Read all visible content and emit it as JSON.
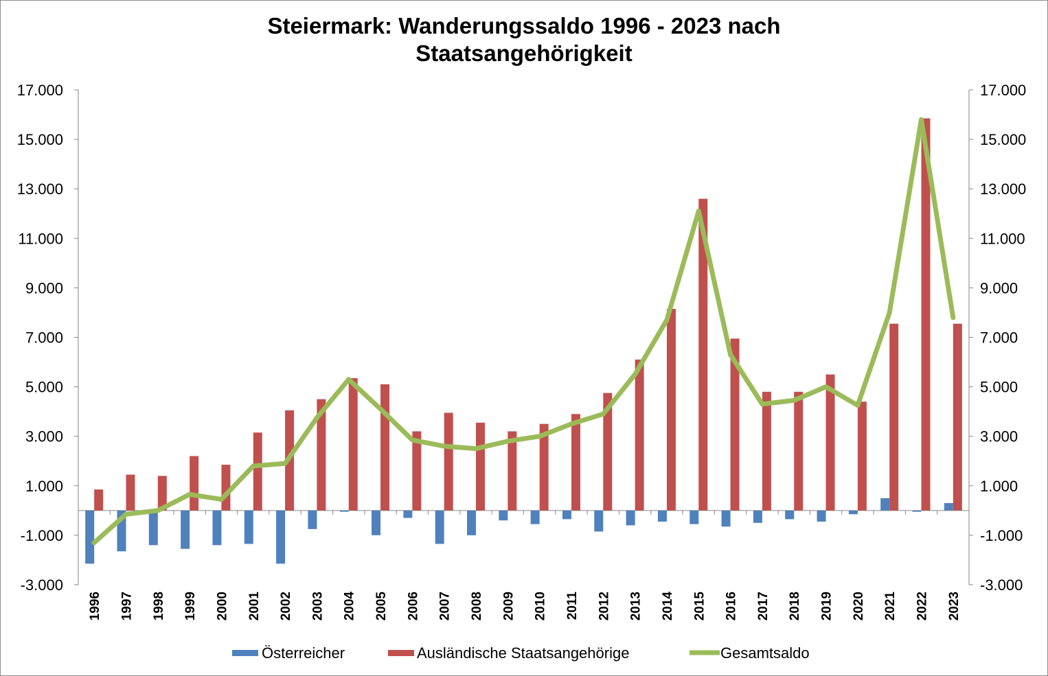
{
  "chart_data": {
    "type": "bar+line",
    "title_lines": [
      "Steiermark: Wanderungssaldo 1996 - 2023 nach",
      "Staatsangehörigkeit"
    ],
    "categories": [
      "1996",
      "1997",
      "1998",
      "1999",
      "2000",
      "2001",
      "2002",
      "2003",
      "2004",
      "2005",
      "2006",
      "2007",
      "2008",
      "2009",
      "2010",
      "2011",
      "2012",
      "2013",
      "2014",
      "2015",
      "2016",
      "2017",
      "2018",
      "2019",
      "2020",
      "2021",
      "2022",
      "2023"
    ],
    "series": [
      {
        "name": "Österreicher",
        "type": "bar",
        "color": "#4f81bd",
        "values": [
          -2150,
          -1650,
          -1400,
          -1550,
          -1400,
          -1350,
          -2150,
          -750,
          -50,
          -1000,
          -300,
          -1350,
          -1000,
          -400,
          -550,
          -350,
          -850,
          -600,
          -450,
          -550,
          -650,
          -500,
          -350,
          -450,
          -150,
          500,
          -50,
          300
        ]
      },
      {
        "name": "Ausländische Staatsangehörige",
        "type": "bar",
        "color": "#c0504d",
        "values": [
          850,
          1450,
          1400,
          2200,
          1850,
          3150,
          4050,
          4500,
          5350,
          5100,
          3200,
          3950,
          3550,
          3200,
          3500,
          3900,
          4750,
          6100,
          8150,
          12600,
          6950,
          4800,
          4800,
          5500,
          4400,
          7550,
          15850,
          7550
        ]
      },
      {
        "name": "Gesamtsaldo",
        "type": "line",
        "color": "#9bbb59",
        "values": [
          -1300,
          -150,
          0,
          650,
          450,
          1800,
          1900,
          3750,
          5300,
          4100,
          2850,
          2600,
          2500,
          2800,
          3000,
          3500,
          3900,
          5500,
          7700,
          12100,
          6300,
          4300,
          4450,
          5000,
          4250,
          8000,
          15800,
          7800
        ]
      }
    ],
    "y_ticks": [
      -3000,
      -1000,
      1000,
      3000,
      5000,
      7000,
      9000,
      11000,
      13000,
      15000,
      17000
    ],
    "y_tick_labels": [
      "-3.000",
      "-1.000",
      "1.000",
      "3.000",
      "5.000",
      "7.000",
      "9.000",
      "11.000",
      "13.000",
      "15.000",
      "17.000"
    ],
    "ylim": [
      -3000,
      17000
    ],
    "gridlines": false,
    "legend_position": "bottom"
  }
}
